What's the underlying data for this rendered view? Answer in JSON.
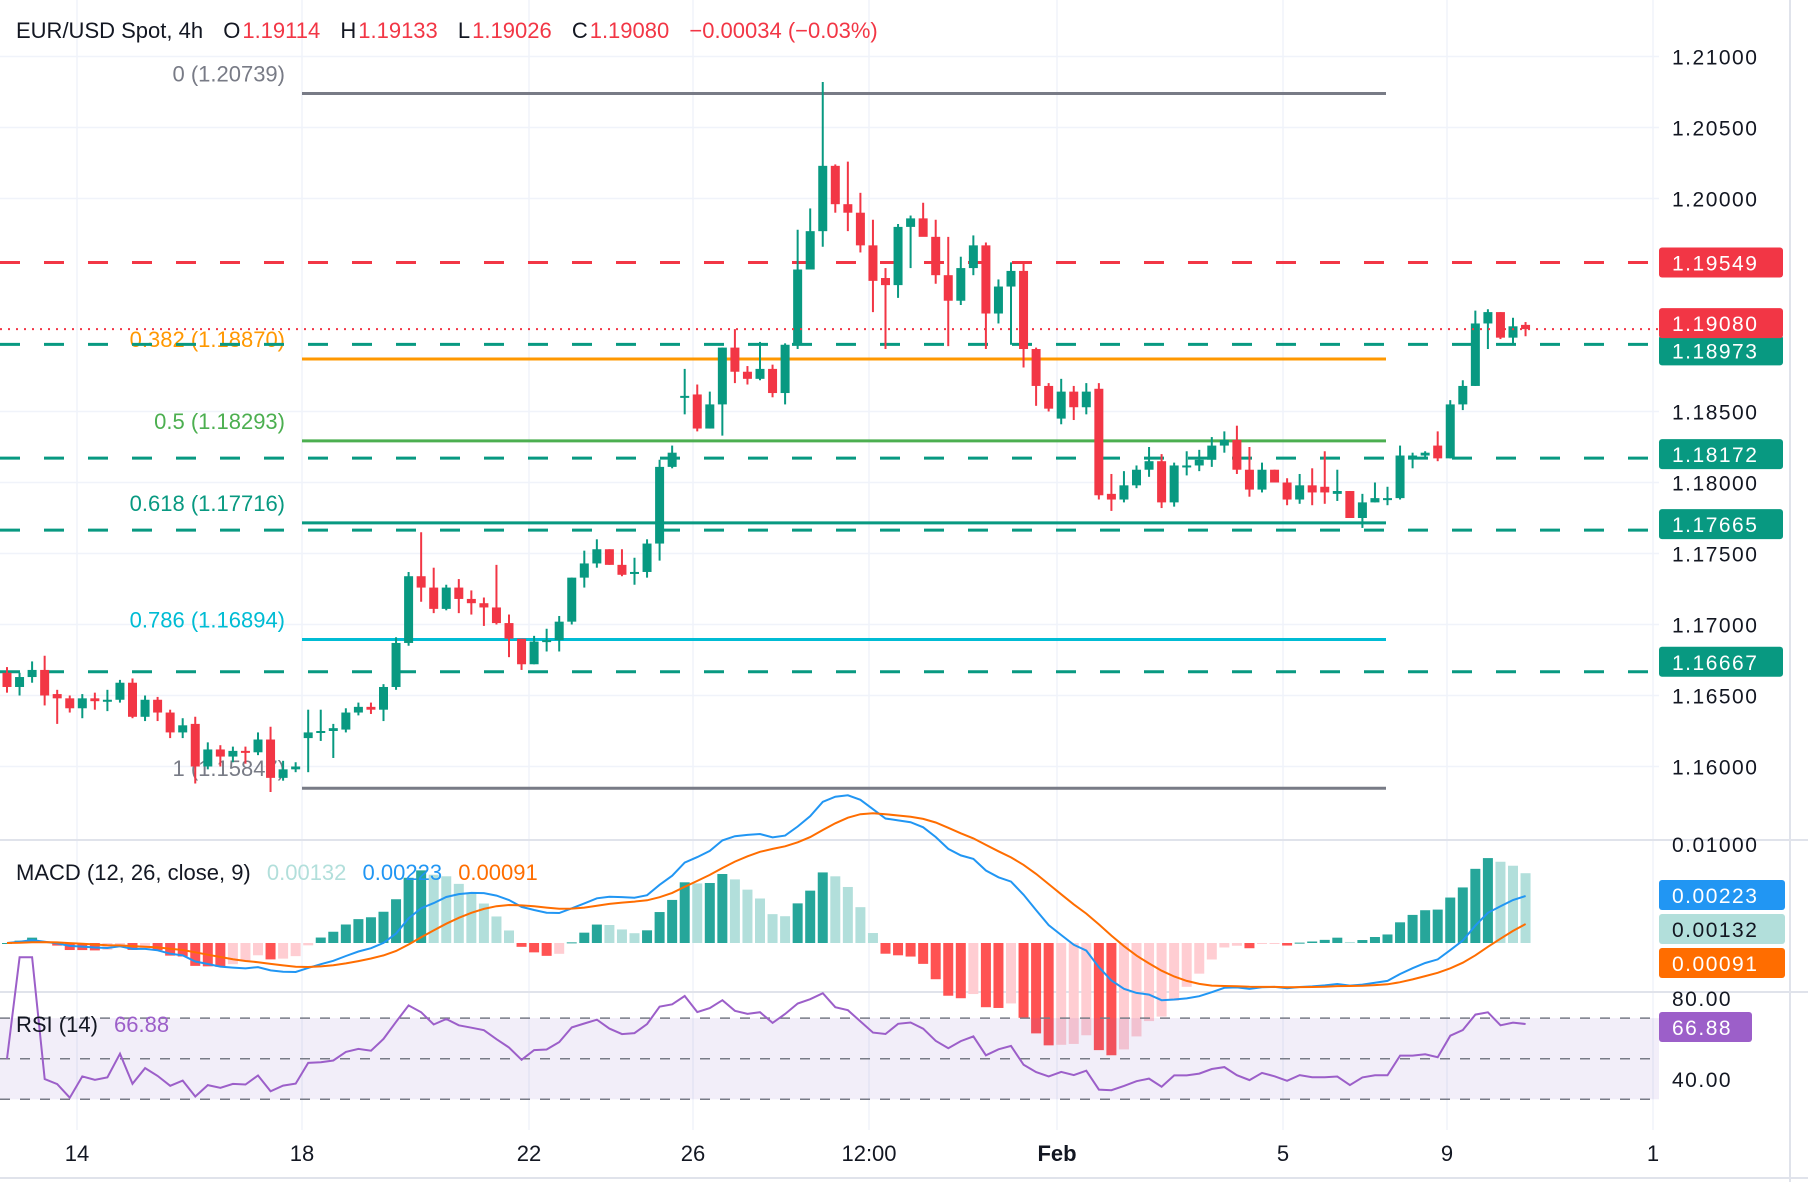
{
  "header": {
    "symbol": "EUR/USD Spot, 4h",
    "open_label": "O",
    "open": "1.19114",
    "high_label": "H",
    "high": "1.19133",
    "low_label": "L",
    "low": "1.19026",
    "close_label": "C",
    "close": "1.19080",
    "change": "−0.00034 (−0.03%)"
  },
  "macd": {
    "label": "MACD (12, 26, close, 9)",
    "histogram": "0.00132",
    "macd": "0.00223",
    "signal": "0.00091",
    "axis_top": "0.01000"
  },
  "rsi": {
    "label": "RSI (14)",
    "value": "66.88",
    "axis": [
      "80.00",
      "40.00"
    ]
  },
  "colors": {
    "up": "#089981",
    "down": "#f23645",
    "macd": "#2196f3",
    "signal": "#ff6d00",
    "hist": "#b2dfdb",
    "rsi": "#9c5fc9",
    "resistance": "#f23645",
    "support": "#089981"
  },
  "chart_data": {
    "type": "candlestick",
    "title": "EUR/USD Spot, 4h",
    "ylim": [
      1.155,
      1.212
    ],
    "price_ticks": [
      "1.21000",
      "1.20500",
      "1.20000",
      "1.18500",
      "1.18000",
      "1.17500",
      "1.17000",
      "1.16500",
      "1.16000"
    ],
    "time_ticks": [
      "14",
      "18",
      "22",
      "26",
      "12:00",
      "Feb",
      "5",
      "9",
      "1"
    ],
    "grid": true,
    "current_price": "1.19080",
    "horizontal_levels": [
      {
        "value": "1.19549",
        "color": "#f23645",
        "style": "dashed"
      },
      {
        "value": "1.18973",
        "color": "#089981",
        "style": "dashed"
      },
      {
        "value": "1.18172",
        "color": "#089981",
        "style": "dashed"
      },
      {
        "value": "1.17665",
        "color": "#089981",
        "style": "dashed"
      },
      {
        "value": "1.16667",
        "color": "#089981",
        "style": "dashed"
      }
    ],
    "fibonacci": [
      {
        "label": "0 (1.20739)",
        "level": 0,
        "price": 1.20739,
        "color": "#787b86"
      },
      {
        "label": "0.382 (1.18870)",
        "level": 0.382,
        "price": 1.1887,
        "color": "#ff9800"
      },
      {
        "label": "0.5 (1.18293)",
        "level": 0.5,
        "price": 1.18293,
        "color": "#4caf50"
      },
      {
        "label": "0.618 (1.17716)",
        "level": 0.618,
        "price": 1.17716,
        "color": "#089981"
      },
      {
        "label": "0.786 (1.16894)",
        "level": 0.786,
        "price": 1.16894,
        "color": "#00bcd4"
      },
      {
        "label": "1 (1.15847)",
        "level": 1,
        "price": 1.15847,
        "color": "#787b86"
      }
    ],
    "candles_ohlc": [
      [
        1.1666,
        1.167,
        1.1652,
        1.1656
      ],
      [
        1.1656,
        1.1666,
        1.165,
        1.1663
      ],
      [
        1.1663,
        1.1674,
        1.1659,
        1.1668
      ],
      [
        1.1668,
        1.1678,
        1.1643,
        1.165
      ],
      [
        1.1651,
        1.1654,
        1.163,
        1.1648
      ],
      [
        1.1648,
        1.165,
        1.1638,
        1.1641
      ],
      [
        1.1641,
        1.1651,
        1.1634,
        1.1648
      ],
      [
        1.1648,
        1.1652,
        1.164,
        1.1646
      ],
      [
        1.1646,
        1.1654,
        1.1639,
        1.1647
      ],
      [
        1.1647,
        1.1661,
        1.1645,
        1.1659
      ],
      [
        1.1659,
        1.1662,
        1.1634,
        1.1635
      ],
      [
        1.1635,
        1.165,
        1.1632,
        1.1647
      ],
      [
        1.1647,
        1.1649,
        1.1632,
        1.1638
      ],
      [
        1.1638,
        1.164,
        1.162,
        1.1624
      ],
      [
        1.1624,
        1.1634,
        1.162,
        1.1629
      ],
      [
        1.163,
        1.1635,
        1.1588,
        1.16
      ],
      [
        1.16,
        1.1617,
        1.1598,
        1.1612
      ],
      [
        1.1612,
        1.1615,
        1.16,
        1.1607
      ],
      [
        1.1607,
        1.1614,
        1.1603,
        1.1611
      ],
      [
        1.1611,
        1.1614,
        1.1602,
        1.161
      ],
      [
        1.161,
        1.1624,
        1.1608,
        1.1619
      ],
      [
        1.1619,
        1.1628,
        1.1582,
        1.1592
      ],
      [
        1.1592,
        1.1604,
        1.159,
        1.1598
      ],
      [
        1.1598,
        1.1603,
        1.1596,
        1.16
      ],
      [
        1.162,
        1.164,
        1.1596,
        1.1624
      ],
      [
        1.1624,
        1.164,
        1.1618,
        1.1625
      ],
      [
        1.1625,
        1.163,
        1.1606,
        1.1627
      ],
      [
        1.1626,
        1.1641,
        1.1624,
        1.1638
      ],
      [
        1.1638,
        1.1645,
        1.1636,
        1.1642
      ],
      [
        1.1642,
        1.1645,
        1.1637,
        1.164
      ],
      [
        1.164,
        1.1658,
        1.1632,
        1.1656
      ],
      [
        1.1656,
        1.1691,
        1.1654,
        1.1687
      ],
      [
        1.1687,
        1.1737,
        1.1685,
        1.1734
      ],
      [
        1.1734,
        1.1765,
        1.1716,
        1.1726
      ],
      [
        1.1726,
        1.174,
        1.1708,
        1.1711
      ],
      [
        1.1711,
        1.1728,
        1.171,
        1.1726
      ],
      [
        1.1726,
        1.1732,
        1.1708,
        1.1718
      ],
      [
        1.1718,
        1.1724,
        1.1707,
        1.1715
      ],
      [
        1.1715,
        1.1719,
        1.1699,
        1.1712
      ],
      [
        1.1712,
        1.1742,
        1.17,
        1.1701
      ],
      [
        1.1701,
        1.1707,
        1.1677,
        1.169
      ],
      [
        1.169,
        1.169,
        1.1668,
        1.1672
      ],
      [
        1.1672,
        1.1692,
        1.1672,
        1.1688
      ],
      [
        1.1688,
        1.1697,
        1.1681,
        1.1689
      ],
      [
        1.1689,
        1.1706,
        1.1681,
        1.1702
      ],
      [
        1.1702,
        1.1733,
        1.17,
        1.1733
      ],
      [
        1.1733,
        1.1752,
        1.1726,
        1.1743
      ],
      [
        1.1743,
        1.176,
        1.174,
        1.1753
      ],
      [
        1.1753,
        1.1753,
        1.1742,
        1.1742
      ],
      [
        1.1742,
        1.1753,
        1.1734,
        1.1735
      ],
      [
        1.1736,
        1.1747,
        1.1728,
        1.1737
      ],
      [
        1.1737,
        1.176,
        1.1733,
        1.1757
      ],
      [
        1.1757,
        1.1816,
        1.1745,
        1.1811
      ],
      [
        1.1811,
        1.1826,
        1.181,
        1.1821
      ],
      [
        1.186,
        1.188,
        1.1848,
        1.1861
      ],
      [
        1.1862,
        1.1869,
        1.1836,
        1.1838
      ],
      [
        1.1838,
        1.1864,
        1.1838,
        1.1855
      ],
      [
        1.1855,
        1.1895,
        1.1833,
        1.1895
      ],
      [
        1.1895,
        1.1908,
        1.187,
        1.1878
      ],
      [
        1.1878,
        1.1882,
        1.1869,
        1.1873
      ],
      [
        1.1873,
        1.1899,
        1.1872,
        1.188
      ],
      [
        1.188,
        1.1883,
        1.186,
        1.1863
      ],
      [
        1.1863,
        1.1898,
        1.1855,
        1.1897
      ],
      [
        1.1897,
        1.1978,
        1.1894,
        1.195
      ],
      [
        1.195,
        1.1993,
        1.195,
        1.1977
      ],
      [
        1.1977,
        1.2082,
        1.1966,
        1.2023
      ],
      [
        1.2023,
        1.2024,
        1.199,
        1.1996
      ],
      [
        1.1996,
        1.2026,
        1.1977,
        1.199
      ],
      [
        1.199,
        1.2004,
        1.1962,
        1.1967
      ],
      [
        1.1967,
        1.1985,
        1.192,
        1.1942
      ],
      [
        1.1944,
        1.1951,
        1.1894,
        1.1939
      ],
      [
        1.1939,
        1.1982,
        1.193,
        1.198
      ],
      [
        1.198,
        1.1988,
        1.1951,
        1.1986
      ],
      [
        1.1986,
        1.1997,
        1.1976,
        1.1973
      ],
      [
        1.1973,
        1.1985,
        1.194,
        1.1946
      ],
      [
        1.1946,
        1.1973,
        1.1896,
        1.1928
      ],
      [
        1.1928,
        1.1959,
        1.1925,
        1.1951
      ],
      [
        1.1951,
        1.1974,
        1.1946,
        1.1967
      ],
      [
        1.1967,
        1.1969,
        1.1894,
        1.1919
      ],
      [
        1.1919,
        1.1943,
        1.1912,
        1.1938
      ],
      [
        1.1938,
        1.1955,
        1.1897,
        1.1949
      ],
      [
        1.1949,
        1.1955,
        1.1881,
        1.1894
      ],
      [
        1.1894,
        1.1895,
        1.1854,
        1.1868
      ],
      [
        1.1868,
        1.187,
        1.185,
        1.1852
      ],
      [
        1.1845,
        1.1873,
        1.1841,
        1.1864
      ],
      [
        1.1864,
        1.1868,
        1.1844,
        1.1853
      ],
      [
        1.1853,
        1.187,
        1.1848,
        1.1864
      ],
      [
        1.1866,
        1.187,
        1.1788,
        1.1791
      ],
      [
        1.1792,
        1.1806,
        1.178,
        1.1788
      ],
      [
        1.1788,
        1.1808,
        1.1786,
        1.1798
      ],
      [
        1.1798,
        1.1812,
        1.1796,
        1.1809
      ],
      [
        1.1809,
        1.1825,
        1.1804,
        1.1815
      ],
      [
        1.1815,
        1.182,
        1.1782,
        1.1786
      ],
      [
        1.1786,
        1.1814,
        1.1783,
        1.1812
      ],
      [
        1.1812,
        1.1822,
        1.1805,
        1.1812
      ],
      [
        1.1812,
        1.1823,
        1.1808,
        1.1816
      ],
      [
        1.1816,
        1.1832,
        1.1811,
        1.1826
      ],
      [
        1.1826,
        1.1836,
        1.1821,
        1.183
      ],
      [
        1.183,
        1.184,
        1.1806,
        1.1809
      ],
      [
        1.1809,
        1.1825,
        1.179,
        1.1795
      ],
      [
        1.1795,
        1.1814,
        1.1793,
        1.1809
      ],
      [
        1.1809,
        1.1809,
        1.1801,
        1.18
      ],
      [
        1.18,
        1.1803,
        1.1784,
        1.1788
      ],
      [
        1.1788,
        1.1806,
        1.1785,
        1.1798
      ],
      [
        1.1798,
        1.181,
        1.1784,
        1.1793
      ],
      [
        1.1797,
        1.1822,
        1.1785,
        1.1793
      ],
      [
        1.1792,
        1.1809,
        1.1787,
        1.1794
      ],
      [
        1.1794,
        1.1794,
        1.1775,
        1.1775
      ],
      [
        1.1775,
        1.1792,
        1.1768,
        1.1786
      ],
      [
        1.1786,
        1.18,
        1.1786,
        1.1789
      ],
      [
        1.1789,
        1.1797,
        1.1784,
        1.1789
      ],
      [
        1.1789,
        1.1826,
        1.1788,
        1.1819
      ],
      [
        1.1819,
        1.1821,
        1.181,
        1.1819
      ],
      [
        1.1819,
        1.1822,
        1.1817,
        1.1821
      ],
      [
        1.1826,
        1.1836,
        1.1815,
        1.1817
      ],
      [
        1.1817,
        1.1858,
        1.1817,
        1.1855
      ],
      [
        1.1855,
        1.1872,
        1.1851,
        1.1868
      ],
      [
        1.1868,
        1.1921,
        1.1868,
        1.1912
      ],
      [
        1.1912,
        1.1922,
        1.1894,
        1.192
      ],
      [
        1.192,
        1.192,
        1.1901,
        1.1902
      ],
      [
        1.1902,
        1.1916,
        1.1897,
        1.191
      ],
      [
        1.1911,
        1.1913,
        1.1903,
        1.1908
      ]
    ]
  }
}
